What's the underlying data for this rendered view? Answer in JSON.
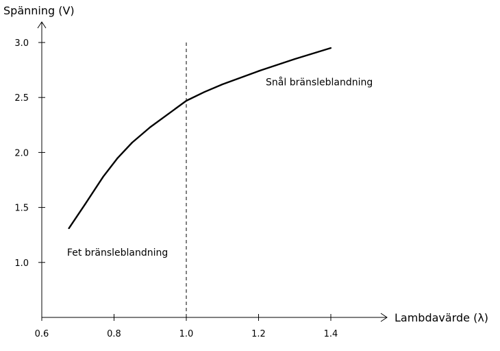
{
  "chart_data": {
    "type": "line",
    "xlabel": "Lambdavärde (λ)",
    "ylabel": "Spänning (V)",
    "xlim": [
      0.6,
      1.4
    ],
    "ylim": [
      0.5,
      3.0
    ],
    "x_ticks": [
      "0.6",
      "0.8",
      "1.0",
      "1.2",
      "1.4"
    ],
    "y_ticks": [
      "1.0",
      "1.5",
      "2.0",
      "2.5",
      "3.0"
    ],
    "grid": false,
    "series": [
      {
        "x": [
          0.675,
          0.72,
          0.77,
          0.81,
          0.85,
          0.9,
          0.95,
          1.0,
          1.05,
          1.1,
          1.2,
          1.3,
          1.4
        ],
        "y": [
          1.31,
          1.53,
          1.78,
          1.95,
          2.09,
          2.23,
          2.35,
          2.47,
          2.55,
          2.62,
          2.74,
          2.85,
          2.95
        ]
      }
    ],
    "reference_line": {
      "x": 1.0,
      "style": "dashed"
    },
    "annotations": [
      {
        "text": "Fet bränsleblandning",
        "x": 0.67,
        "y": 1.06
      },
      {
        "text": "Snål bränsleblandning",
        "x": 1.22,
        "y": 2.61
      }
    ]
  }
}
